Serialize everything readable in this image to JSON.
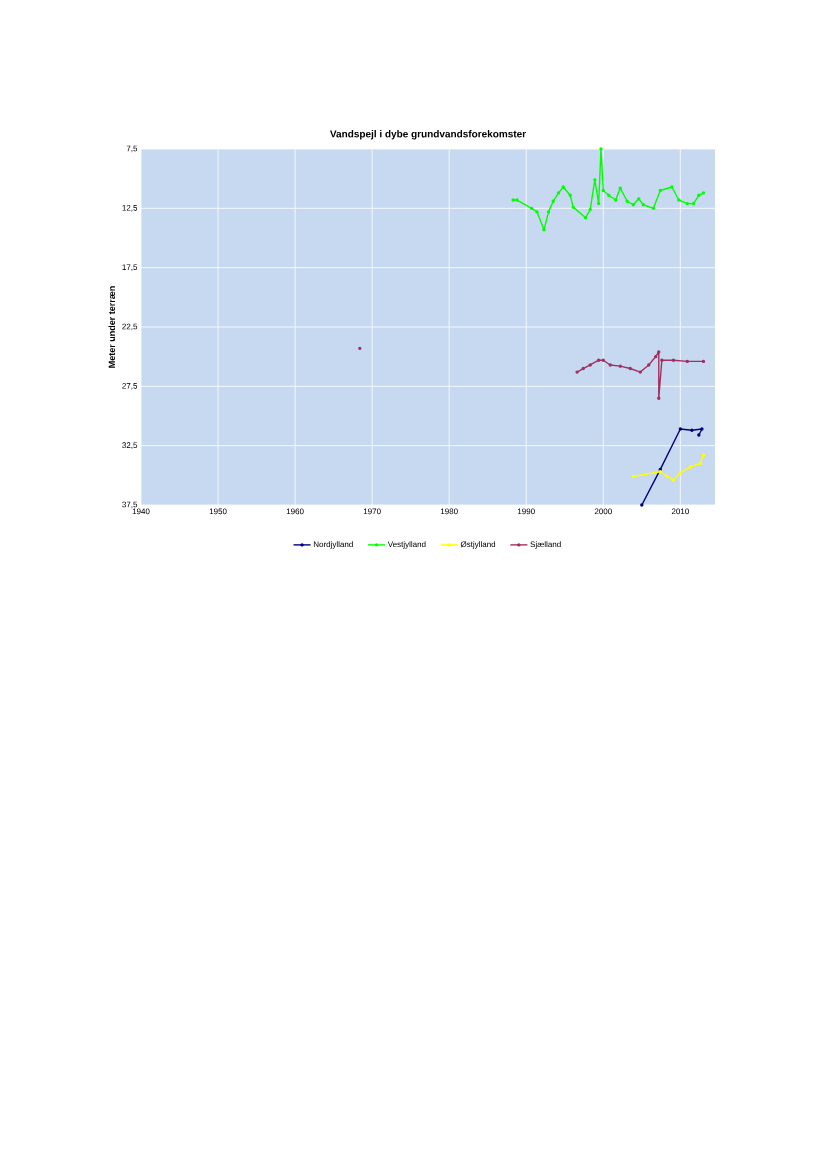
{
  "chart_data": {
    "type": "line",
    "title": "Vandspejl i dybe grundvandsforekomster",
    "ylabel": "Meter under terræn",
    "xlim": [
      1940,
      2014.5
    ],
    "xticks": [
      1940,
      1950,
      1960,
      1970,
      1980,
      1990,
      2000,
      2010
    ],
    "ylim": [
      37.5,
      7.5
    ],
    "yticks": [
      {
        "value": 7.5,
        "label": "7,5"
      },
      {
        "value": 12.5,
        "label": "12,5"
      },
      {
        "value": 17.5,
        "label": "17,5"
      },
      {
        "value": 22.5,
        "label": "22,5"
      },
      {
        "value": 27.5,
        "label": "27,5"
      },
      {
        "value": 32.5,
        "label": "32,5"
      },
      {
        "value": 37.5,
        "label": "37,5"
      }
    ],
    "grid": true,
    "legend": "bottom",
    "marker": "circle",
    "series": [
      {
        "name": "Nordjylland",
        "color": "#000080",
        "x": [
          2005.0,
          2007.4,
          2010.0,
          2011.5,
          2012.8,
          2012.4
        ],
        "values": [
          37.5,
          34.5,
          31.1,
          31.2,
          31.1,
          31.6
        ]
      },
      {
        "name": "Vestjylland",
        "color": "#00ff00",
        "x": [
          1988.3,
          1988.8,
          1990.7,
          1991.4,
          1992.3,
          1992.9,
          1993.5,
          1994.2,
          1994.8,
          1995.7,
          1996.1,
          1997.7,
          1998.3,
          1998.9,
          1999.4,
          1999.7,
          2000.0,
          2000.7,
          2001.6,
          2002.2,
          2003.1,
          2003.9,
          2004.6,
          2005.2,
          2006.5,
          2007.4,
          2008.9,
          2009.8,
          2010.9,
          2011.7,
          2012.4,
          2013.0
        ],
        "values": [
          11.8,
          11.8,
          12.5,
          12.8,
          14.3,
          12.8,
          11.9,
          11.2,
          10.7,
          11.4,
          12.4,
          13.3,
          12.6,
          10.1,
          12.1,
          7.5,
          11.0,
          11.4,
          11.8,
          10.8,
          11.9,
          12.2,
          11.7,
          12.2,
          12.5,
          11.0,
          10.7,
          11.8,
          12.1,
          12.1,
          11.4,
          11.2
        ]
      },
      {
        "name": "Østjylland",
        "color": "#ffff00",
        "x": [
          2003.9,
          2007.4,
          2008.3,
          2009.1,
          2010.0,
          2011.3,
          2012.6,
          2013.0
        ],
        "values": [
          35.1,
          34.7,
          35.1,
          35.4,
          34.8,
          34.3,
          34.0,
          33.3
        ]
      },
      {
        "name": "Sjælland",
        "color": "#a03060",
        "x": [
          1968.4,
          1982.0,
          1996.6,
          1997.4,
          1998.3,
          1999.4,
          2000.0,
          2000.9,
          2002.2,
          2003.5,
          2004.8,
          2005.9,
          2006.8,
          2007.2,
          2007.2,
          2007.6,
          2009.1,
          2010.9,
          2013.0
        ],
        "values": [
          24.3,
          null,
          26.3,
          26.0,
          25.7,
          25.3,
          25.3,
          25.7,
          25.8,
          26.0,
          26.3,
          25.7,
          25.0,
          24.6,
          28.5,
          25.3,
          25.3,
          25.4,
          25.4
        ]
      }
    ]
  }
}
